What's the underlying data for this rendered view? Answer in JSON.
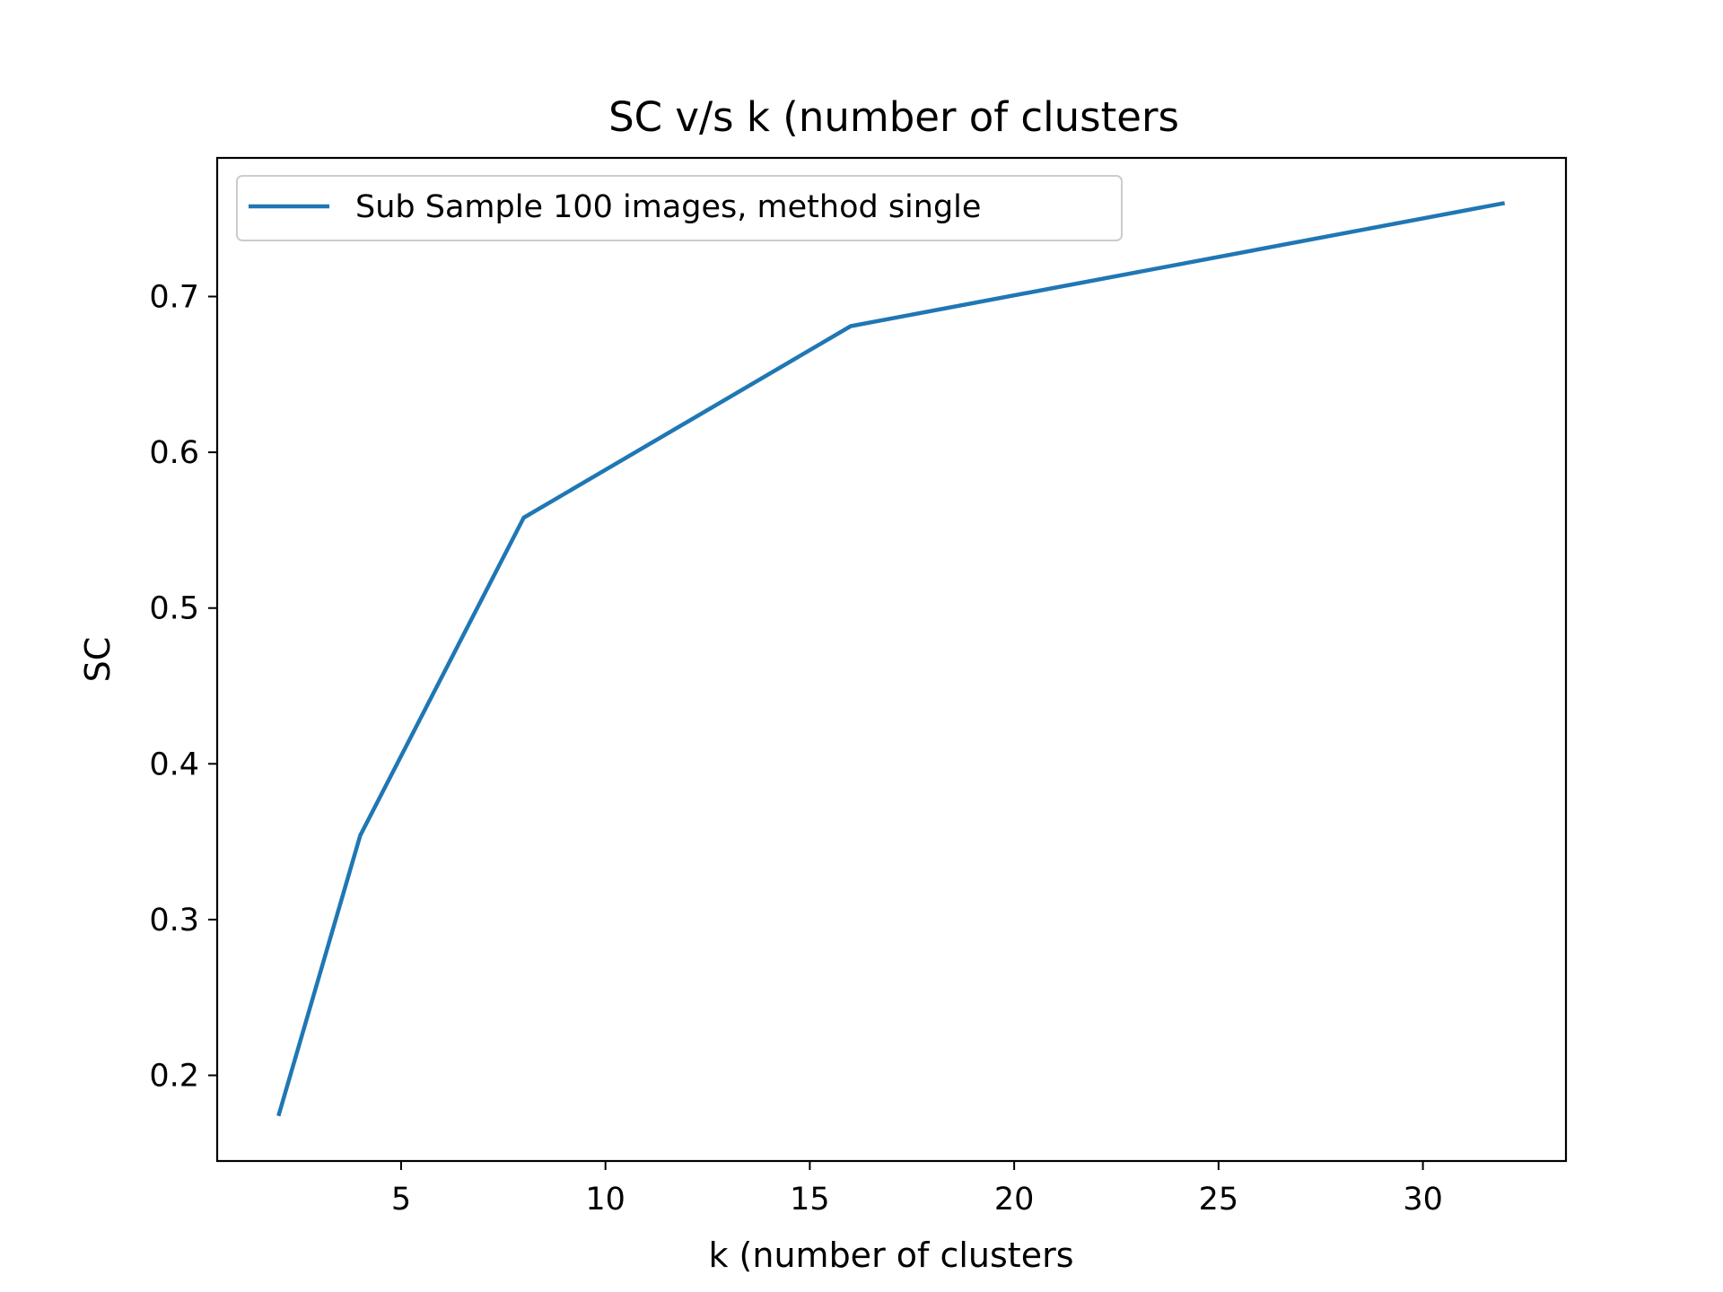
{
  "chart_data": {
    "type": "line",
    "title": "SC v/s k (number of clusters",
    "xlabel": "k (number of clusters",
    "ylabel": "SC",
    "x": [
      2,
      4,
      8,
      16,
      32
    ],
    "series": [
      {
        "name": "Sub Sample 100 images, method single",
        "color": "#1f77b4",
        "values": [
          0.174,
          0.354,
          0.558,
          0.681,
          0.76
        ]
      }
    ],
    "xlim": [
      0.5,
      33.5
    ],
    "ylim": [
      0.145,
      0.789
    ],
    "xticks": [
      5,
      10,
      15,
      20,
      25,
      30
    ],
    "yticks": [
      0.2,
      0.3,
      0.4,
      0.5,
      0.6,
      0.7
    ],
    "xtick_labels": [
      "5",
      "10",
      "15",
      "20",
      "25",
      "30"
    ],
    "ytick_labels": [
      "0.2",
      "0.3",
      "0.4",
      "0.5",
      "0.6",
      "0.7"
    ],
    "grid": false,
    "legend": "upper-left"
  }
}
